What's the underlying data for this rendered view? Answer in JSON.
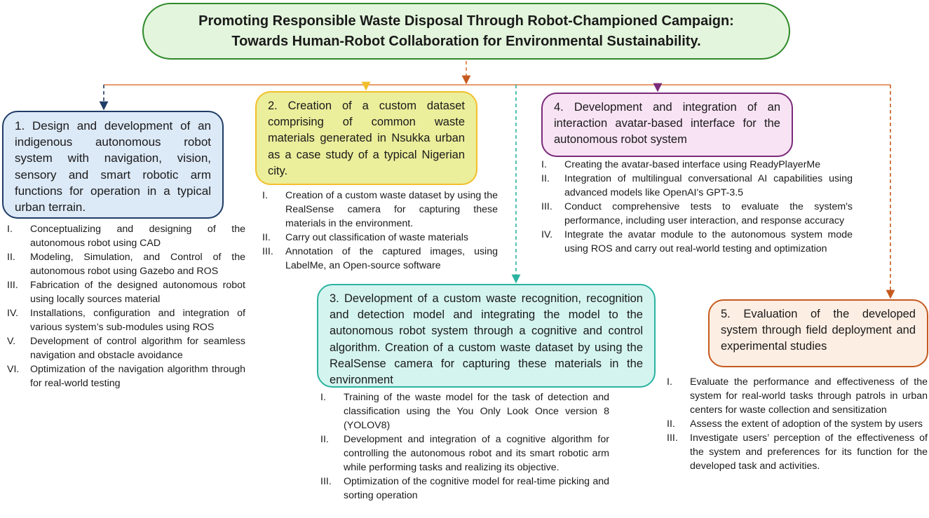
{
  "title": {
    "line1": "Promoting Responsible Waste Disposal Through Robot-Championed Campaign:",
    "line2": "Towards Human-Robot Collaboration for Environmental Sustainability."
  },
  "objectives": [
    {
      "label": "1. Design and development of an indigenous autonomous robot system with navigation, vision, sensory and smart robotic arm functions for operation in a typical urban terrain.",
      "color": "#1f3d66",
      "items": [
        {
          "num": "I.",
          "text": "Conceptualizing and designing of the autonomous robot using CAD"
        },
        {
          "num": "II.",
          "text": "Modeling, Simulation, and Control of the autonomous robot using Gazebo and ROS"
        },
        {
          "num": "III.",
          "text": "Fabrication of the designed autonomous robot using locally sources material"
        },
        {
          "num": "IV.",
          "text": "Installations, configuration and integration of various system’s sub-modules using ROS"
        },
        {
          "num": "V.",
          "text": "Development of control algorithm for seamless navigation and obstacle avoidance"
        },
        {
          "num": "VI.",
          "text": "Optimization of the navigation algorithm through for real-world testing"
        }
      ]
    },
    {
      "label": "2. Creation of a custom dataset comprising of common waste materials generated in Nsukka urban as a case study of a typical Nigerian city.",
      "color": "#f2bf2c",
      "items": [
        {
          "num": "I.",
          "text": "Creation of a custom waste dataset by using the RealSense camera for capturing these materials in the environment."
        },
        {
          "num": "II.",
          "text": "Carry out classification of waste materials"
        },
        {
          "num": "III.",
          "text": "Annotation of the captured images, using LabelMe, an Open-source software"
        }
      ]
    },
    {
      "label": "3. Development of a custom waste recognition, recognition and detection model and integrating the model to the autonomous robot system through a cognitive and control algorithm. Creation of a custom waste dataset by using the RealSense camera for capturing these materials in the environment",
      "color": "#2ab3a0",
      "items": [
        {
          "num": "I.",
          "text": "Training of the waste model for the task of detection and classification using the You Only Look Once version 8 (YOLOV8)"
        },
        {
          "num": "II.",
          "text": "Development and integration of a cognitive algorithm for controlling the autonomous robot and its smart robotic arm while performing tasks and realizing its objective."
        },
        {
          "num": "III.",
          "text": "Optimization of the cognitive model for real-time picking and sorting operation"
        }
      ]
    },
    {
      "label": "4. Development and integration of an interaction avatar-based interface for the autonomous robot system",
      "color": "#7a2a79",
      "items": [
        {
          "num": "I.",
          "text": "Creating the avatar-based interface using ReadyPlayerMe"
        },
        {
          "num": "II.",
          "text": "Integration of multilingual conversational AI capabilities using advanced models like OpenAI's GPT-3.5"
        },
        {
          "num": "III.",
          "text": "Conduct comprehensive tests to evaluate the system's performance, including user interaction, and response accuracy"
        },
        {
          "num": "IV.",
          "text": "Integrate the avatar module to the autonomous system mode using ROS and carry out real-world testing and optimization"
        }
      ]
    },
    {
      "label": "5. Evaluation of the developed system through field deployment and experimental studies",
      "color": "#c55a1e",
      "items": [
        {
          "num": "I.",
          "text": "Evaluate the performance and effectiveness of the system for real-world tasks through patrols in urban centers for waste collection and sensitization"
        },
        {
          "num": "II.",
          "text": "Assess the extent of adoption of the system by users"
        },
        {
          "num": "III.",
          "text": "Investigate users’ perception of the effectiveness of the system and preferences for its function for the developed task and activities."
        }
      ]
    }
  ],
  "connector_color": "#e07a3a"
}
